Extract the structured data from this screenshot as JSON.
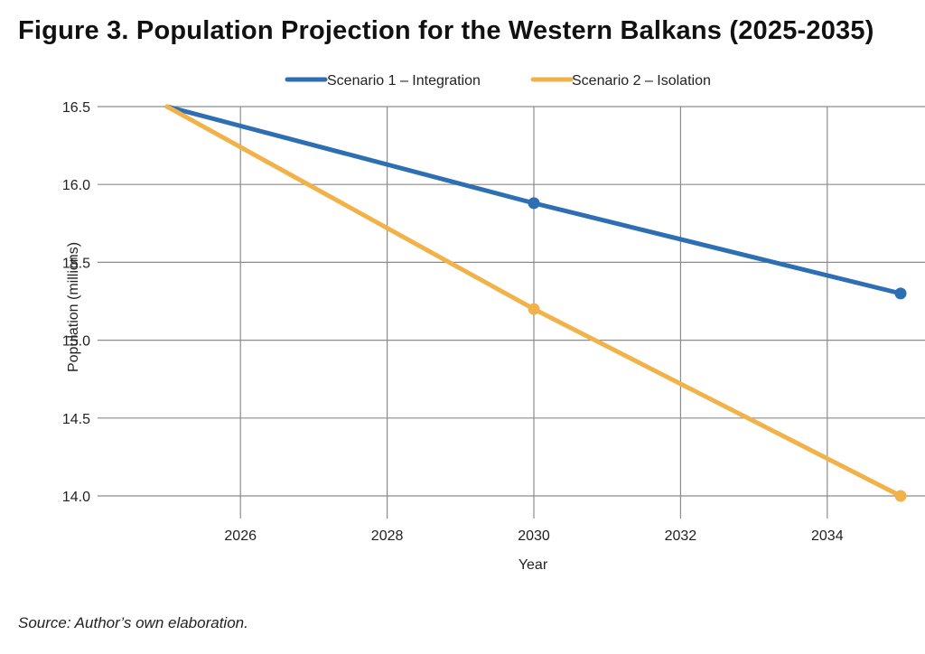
{
  "figure": {
    "title": "Figure 3. Population Projection for the Western Balkans (2025-2035)",
    "source": "Source: Author’s own elaboration."
  },
  "chart_data": {
    "type": "line",
    "title": "Figure 3. Population Projection for the Western Balkans (2025-2035)",
    "xlabel": "Year",
    "ylabel": "Population (millions)",
    "xlim": [
      2025,
      2035
    ],
    "ylim": [
      14.0,
      16.5
    ],
    "xticks": [
      2026,
      2028,
      2030,
      2032,
      2034
    ],
    "yticks": [
      14.0,
      14.5,
      15.0,
      15.5,
      16.0,
      16.5
    ],
    "ytick_labels": [
      "14.0",
      "14.5",
      "15.0",
      "15.5",
      "16.0",
      "16.5"
    ],
    "grid": true,
    "legend_position": "top-center",
    "series": [
      {
        "name": "Scenario 1 – Integration",
        "color": "#2e6fb4",
        "x": [
          2025,
          2030,
          2035
        ],
        "y": [
          16.5,
          15.88,
          15.3
        ],
        "markers": [
          false,
          true,
          true
        ]
      },
      {
        "name": "Scenario 2 – Isolation",
        "color": "#f2b24a",
        "x": [
          2025,
          2030,
          2035
        ],
        "y": [
          16.5,
          15.2,
          14.0
        ],
        "markers": [
          false,
          true,
          true
        ]
      }
    ]
  }
}
